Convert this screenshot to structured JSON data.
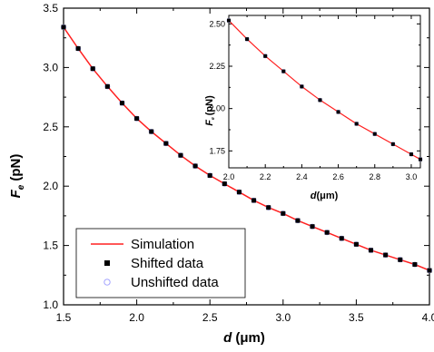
{
  "chart_data": [
    {
      "type": "scatter",
      "panel": "main",
      "xlabel": "d (μm)",
      "xlabel_main": "d",
      "xlabel_unit": "(μm)",
      "ylabel": "Fe (pN)",
      "ylabel_main": "F",
      "ylabel_sub": "e",
      "ylabel_unit": "(pN)",
      "xlim": [
        1.5,
        4.0
      ],
      "ylim": [
        1.0,
        3.5
      ],
      "xticks": [
        "1.5",
        "2.0",
        "2.5",
        "3.0",
        "3.5",
        "4.0"
      ],
      "yticks": [
        "1.0",
        "1.5",
        "2.0",
        "2.5",
        "3.0",
        "3.5"
      ],
      "grid": false,
      "legend_position": "bottom-left",
      "legend": [
        "Simulation",
        "Shifted data",
        "Unshifted data"
      ],
      "series": [
        {
          "name": "Simulation",
          "kind": "line",
          "color": "#ff2020",
          "x": [
            1.5,
            1.6,
            1.7,
            1.8,
            1.9,
            2.0,
            2.1,
            2.2,
            2.3,
            2.4,
            2.5,
            2.6,
            2.7,
            2.8,
            2.9,
            3.0,
            3.1,
            3.2,
            3.3,
            3.4,
            3.5,
            3.6,
            3.7,
            3.8,
            3.9,
            4.0
          ],
          "y": [
            3.34,
            3.16,
            2.99,
            2.84,
            2.7,
            2.57,
            2.46,
            2.36,
            2.26,
            2.17,
            2.09,
            2.02,
            1.95,
            1.88,
            1.82,
            1.77,
            1.71,
            1.66,
            1.61,
            1.56,
            1.51,
            1.46,
            1.42,
            1.38,
            1.34,
            1.29
          ]
        },
        {
          "name": "Shifted data",
          "kind": "square-marker",
          "color": "#000000",
          "x": [
            1.5,
            1.6,
            1.7,
            1.8,
            1.9,
            2.0,
            2.1,
            2.2,
            2.3,
            2.4,
            2.5,
            2.6,
            2.7,
            2.8,
            2.9,
            3.0,
            3.1,
            3.2,
            3.3,
            3.4,
            3.5,
            3.6,
            3.7,
            3.8,
            3.9,
            4.0
          ],
          "y": [
            3.34,
            3.16,
            2.99,
            2.84,
            2.7,
            2.57,
            2.46,
            2.36,
            2.26,
            2.17,
            2.09,
            2.02,
            1.95,
            1.88,
            1.82,
            1.77,
            1.71,
            1.66,
            1.61,
            1.56,
            1.51,
            1.46,
            1.42,
            1.38,
            1.34,
            1.29
          ]
        },
        {
          "name": "Unshifted data",
          "kind": "circle-marker",
          "color": "#9999ff",
          "x": [
            1.5,
            1.6,
            1.7,
            1.8,
            1.9,
            2.0,
            2.1,
            2.2,
            2.3,
            2.4,
            2.5,
            2.6,
            2.7,
            2.8,
            2.9,
            3.0,
            3.1,
            3.2,
            3.3,
            3.4,
            3.5,
            3.6,
            3.7,
            3.8,
            3.9,
            4.0
          ],
          "y": [
            3.34,
            3.16,
            2.99,
            2.84,
            2.7,
            2.57,
            2.46,
            2.36,
            2.26,
            2.17,
            2.09,
            2.02,
            1.95,
            1.88,
            1.82,
            1.77,
            1.71,
            1.66,
            1.61,
            1.56,
            1.51,
            1.46,
            1.42,
            1.38,
            1.34,
            1.29
          ]
        }
      ]
    },
    {
      "type": "scatter",
      "panel": "inset",
      "xlabel": "d(μm)",
      "xlabel_main": "d",
      "xlabel_unit": "(μm)",
      "ylabel": "Fe (pN)",
      "ylabel_main": "F",
      "ylabel_sub": "e",
      "ylabel_unit": "(pN)",
      "xlim": [
        2.0,
        3.05
      ],
      "ylim": [
        1.65,
        2.55
      ],
      "xticks": [
        "2.0",
        "2.2",
        "2.4",
        "2.6",
        "2.8",
        "3.0"
      ],
      "yticks": [
        "1.75",
        "2.00",
        "2.25",
        "2.50"
      ],
      "grid": false,
      "series": [
        {
          "name": "Simulation",
          "kind": "line",
          "color": "#ff2020",
          "x": [
            2.0,
            2.1,
            2.2,
            2.3,
            2.4,
            2.5,
            2.6,
            2.7,
            2.8,
            2.9,
            3.0,
            3.05
          ],
          "y": [
            2.52,
            2.41,
            2.31,
            2.22,
            2.13,
            2.05,
            1.98,
            1.91,
            1.85,
            1.79,
            1.73,
            1.7
          ]
        },
        {
          "name": "Shifted data",
          "kind": "square-marker",
          "color": "#000000",
          "x": [
            2.0,
            2.1,
            2.2,
            2.3,
            2.4,
            2.5,
            2.6,
            2.7,
            2.8,
            2.9,
            3.0,
            3.05
          ],
          "y": [
            2.52,
            2.41,
            2.31,
            2.22,
            2.13,
            2.05,
            1.98,
            1.91,
            1.85,
            1.79,
            1.73,
            1.7
          ]
        },
        {
          "name": "Unshifted data",
          "kind": "circle-marker",
          "color": "#9999ff",
          "x": [
            2.0,
            2.1,
            2.2,
            2.3,
            2.4,
            2.5,
            2.6,
            2.7,
            2.8,
            2.9,
            3.0,
            3.05
          ],
          "y": [
            2.52,
            2.41,
            2.31,
            2.22,
            2.13,
            2.05,
            1.98,
            1.91,
            1.85,
            1.79,
            1.73,
            1.7
          ]
        }
      ]
    }
  ]
}
